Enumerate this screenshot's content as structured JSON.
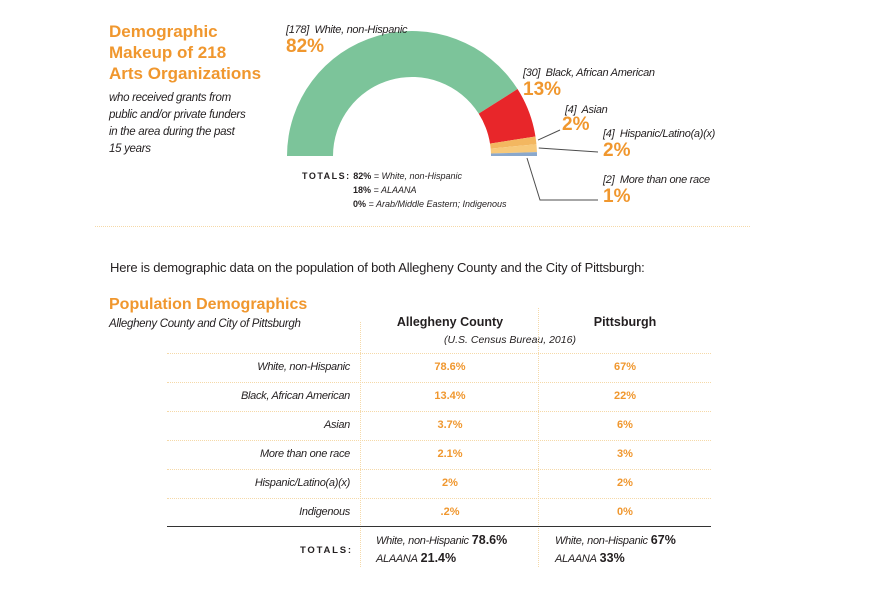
{
  "chart_data": [
    {
      "type": "pie",
      "subtype": "semi-donut",
      "title": "Demographic Makeup of 218 Arts Organizations",
      "subtitle": "who received grants from public and/or private funders in the area during the past 15 years",
      "categories": [
        "White, non-Hispanic",
        "Black, African American",
        "Asian",
        "Hispanic/Latino(a)(x)",
        "More than one race"
      ],
      "counts": [
        178,
        30,
        4,
        4,
        2
      ],
      "values": [
        82,
        13,
        2,
        2,
        1
      ],
      "count_labels": [
        "[178]",
        "[30]",
        "[4]",
        "[4]",
        "[2]"
      ],
      "value_labels": [
        "82%",
        "13%",
        "2%",
        "2%",
        "1%"
      ],
      "colors": [
        "#7cc49a",
        "#e8262a",
        "#f3b760",
        "#f3b760",
        "#8aa8cc"
      ],
      "totals": {
        "label": "TOTALS:",
        "lines": [
          {
            "value": "82%",
            "text": "= White, non-Hispanic"
          },
          {
            "value": "18%",
            "text": "= ALAANA"
          },
          {
            "value": "0%",
            "text": "= Arab/Middle Eastern; Indigenous"
          }
        ]
      }
    },
    {
      "type": "table",
      "title": "Population Demographics",
      "subtitle": "Allegheny County and City of Pittsburgh",
      "columns": [
        "Allegheny County",
        "Pittsburgh"
      ],
      "source": "(U.S. Census Bureau, 2016)",
      "rows": [
        {
          "label": "White, non-Hispanic",
          "values": [
            "78.6%",
            "67%"
          ]
        },
        {
          "label": "Black, African American",
          "values": [
            "13.4%",
            "22%"
          ]
        },
        {
          "label": "Asian",
          "values": [
            "3.7%",
            "6%"
          ]
        },
        {
          "label": "More than one race",
          "values": [
            "2.1%",
            "3%"
          ]
        },
        {
          "label": "Hispanic/Latino(a)(x)",
          "values": [
            "2%",
            "2%"
          ]
        },
        {
          "label": "Indigenous",
          "values": [
            ".2%",
            "0%"
          ]
        }
      ],
      "totals": {
        "label": "TOTALS:",
        "cells": [
          {
            "white_label": "White, non-Hispanic",
            "white_value": "78.6%",
            "alaana_label": "ALAANA",
            "alaana_value": "21.4%"
          },
          {
            "white_label": "White, non-Hispanic",
            "white_value": "67%",
            "alaana_label": "ALAANA",
            "alaana_value": "33%"
          }
        ]
      }
    }
  ],
  "header": {
    "title_lines": [
      "Demographic",
      "Makeup of 218",
      "Arts Organizations"
    ],
    "subtitle_lines": [
      "who received grants from",
      "public and/or private funders",
      "in the area during the past",
      "15 years"
    ]
  },
  "intro_text": "Here is demographic data on the population of both Allegheny County and the City of Pittsburgh:"
}
